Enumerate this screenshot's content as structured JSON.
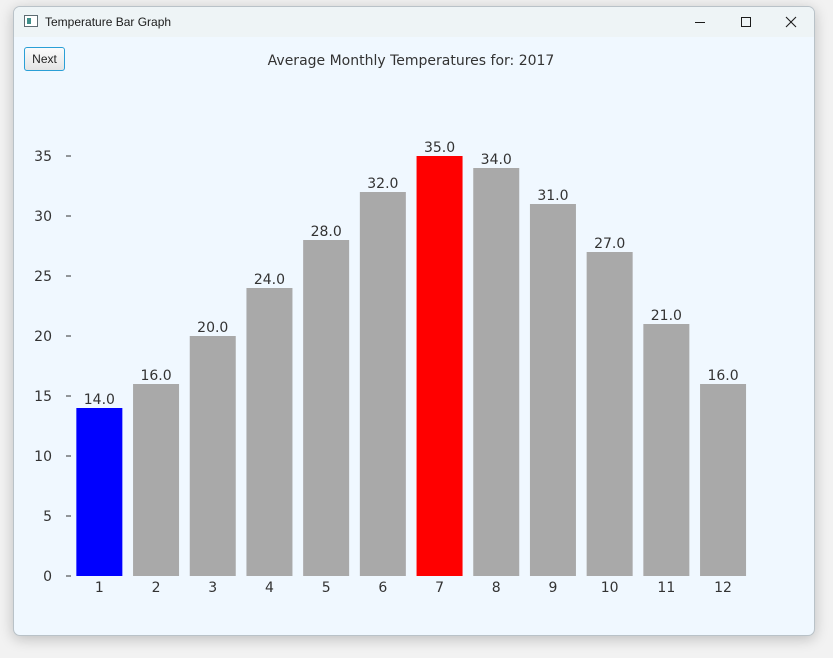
{
  "window": {
    "title": "Temperature Bar Graph"
  },
  "controls": {
    "next_label": "Next"
  },
  "colors": {
    "default_bar": "#a9a9a9",
    "min_bar": "#0000ff",
    "max_bar": "#ff0000",
    "background": "#f0f8ff",
    "text": "#333333"
  },
  "chart_data": {
    "type": "bar",
    "title": "Average Monthly Temperatures for: 2017",
    "xlabel": "",
    "ylabel": "",
    "categories": [
      "1",
      "2",
      "3",
      "4",
      "5",
      "6",
      "7",
      "8",
      "9",
      "10",
      "11",
      "12"
    ],
    "values": [
      14.0,
      16.0,
      20.0,
      24.0,
      28.0,
      32.0,
      35.0,
      34.0,
      31.0,
      27.0,
      21.0,
      16.0
    ],
    "value_labels": [
      "14.0",
      "16.0",
      "20.0",
      "24.0",
      "28.0",
      "32.0",
      "35.0",
      "34.0",
      "31.0",
      "27.0",
      "21.0",
      "16.0"
    ],
    "ylim": [
      0,
      35
    ],
    "yticks": [
      0,
      5,
      10,
      15,
      20,
      25,
      30,
      35
    ],
    "highlight": {
      "min_category": "1",
      "max_category": "7"
    },
    "grid": false,
    "legend": "none"
  }
}
